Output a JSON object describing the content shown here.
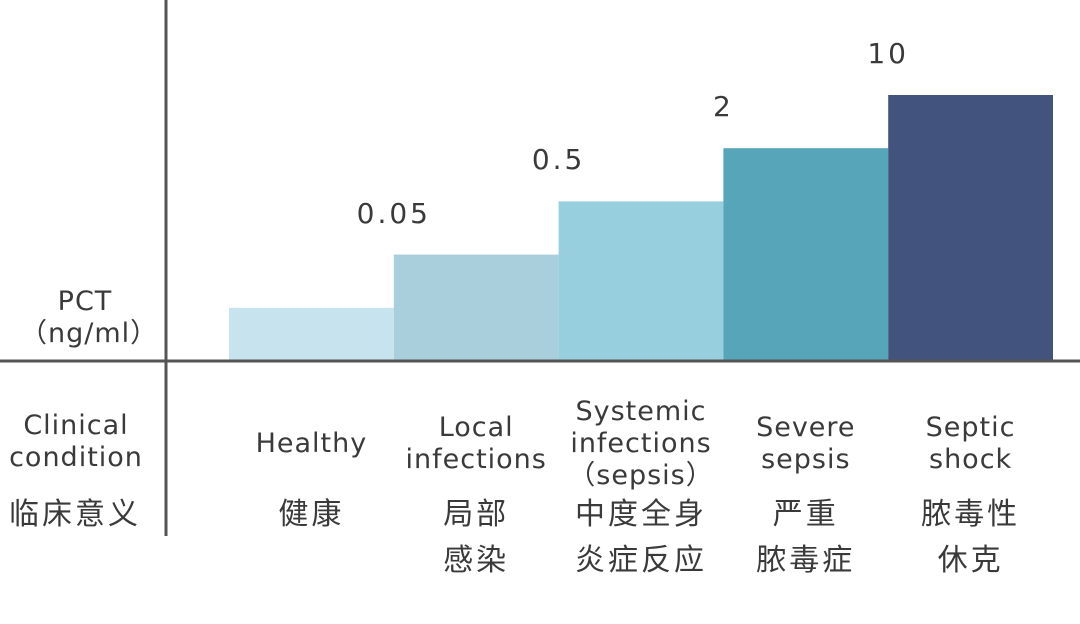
{
  "chart_data": {
    "type": "bar",
    "ylabel_line1": "PCT",
    "ylabel_line2": "（ng/ml）",
    "categories": [
      "Healthy",
      "Local infections",
      "Systemic infections（sepsis）",
      "Severe sepsis",
      "Septic shock"
    ],
    "threshold_labels": [
      "",
      "0.05",
      "0.5",
      "2",
      "10"
    ],
    "levels": [
      1,
      2,
      3,
      4,
      5
    ],
    "colors": [
      "#c7e4ee",
      "#aacfdc",
      "#98cfdf",
      "#57a5b9",
      "#42547e"
    ]
  },
  "row_headers": {
    "clinical_en": "Clinical condition",
    "clinical_zh": "临床意义"
  },
  "categories_en": [
    [
      "Healthy"
    ],
    [
      "Local",
      "infections"
    ],
    [
      "Systemic",
      "infections",
      "（sepsis）"
    ],
    [
      "Severe",
      "sepsis"
    ],
    [
      "Septic",
      "shock"
    ]
  ],
  "categories_zh": [
    [
      "健康"
    ],
    [
      "局部",
      "感染"
    ],
    [
      "中度全身",
      "炎症反应"
    ],
    [
      "严重",
      "脓毒症"
    ],
    [
      "脓毒性",
      "休克"
    ]
  ]
}
